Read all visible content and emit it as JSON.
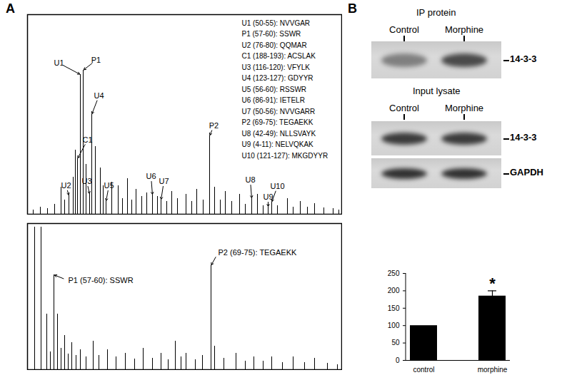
{
  "panel_labels": [
    "A",
    "B"
  ],
  "chart_data": [
    {
      "type": "spectrum",
      "tick_labels": false,
      "color": "#000000",
      "xlim": [
        0,
        440
      ],
      "ylim": [
        0,
        280
      ],
      "x": [
        8,
        18,
        28,
        38,
        47,
        52,
        58,
        64,
        67,
        70,
        74,
        78,
        82,
        87,
        90,
        95,
        102,
        106,
        110,
        118,
        127,
        133,
        140,
        146,
        152,
        160,
        167,
        175,
        182,
        187,
        195,
        202,
        210,
        222,
        230,
        237,
        246,
        255,
        262,
        270,
        277,
        286,
        297,
        305,
        314,
        322,
        330,
        337,
        342,
        350,
        364,
        372,
        382,
        392,
        402,
        415,
        428,
        436
      ],
      "values": [
        6,
        10,
        8,
        14,
        38,
        20,
        26,
        52,
        90,
        78,
        196,
        202,
        70,
        28,
        140,
        95,
        65,
        40,
        18,
        45,
        40,
        22,
        50,
        20,
        35,
        25,
        30,
        27,
        25,
        20,
        18,
        32,
        22,
        28,
        18,
        35,
        20,
        110,
        38,
        20,
        32,
        18,
        28,
        14,
        22,
        28,
        12,
        10,
        17,
        12,
        22,
        10,
        18,
        10,
        15,
        9,
        8,
        6
      ],
      "annotations": [
        {
          "label": "U1",
          "x": 74,
          "y": 196
        },
        {
          "label": "P1",
          "x": 78,
          "y": 202
        },
        {
          "label": "C1",
          "x": 70,
          "y": 78
        },
        {
          "label": "U4",
          "x": 90,
          "y": 140
        },
        {
          "label": "U2",
          "x": 58,
          "y": 26
        },
        {
          "label": "U3",
          "x": 87,
          "y": 28
        },
        {
          "label": "U5",
          "x": 110,
          "y": 18
        },
        {
          "label": "U6",
          "x": 175,
          "y": 27
        },
        {
          "label": "U7",
          "x": 187,
          "y": 20
        },
        {
          "label": "P2",
          "x": 255,
          "y": 110
        },
        {
          "label": "U8",
          "x": 314,
          "y": 22
        },
        {
          "label": "U9",
          "x": 337,
          "y": 10
        },
        {
          "label": "U10",
          "x": 342,
          "y": 17
        }
      ],
      "peptides": [
        "U1 (50-55): NVVGAR",
        "P1 (57-60): SSWR",
        "U2 (76-80): QQMAR",
        "C1 (188-193): ACSLAK",
        "U3 (116-120): VFYLK",
        "U4 (123-127): GDYYR",
        "U5 (56-60): RSSWR",
        "U6 (86-91): IETELR",
        "U7 (50-56): NVVGARR",
        "P2 (69-75): TEGAEKK",
        "U8 (42-49): NLLSVAYK",
        "U9 (4-11): NELVQKAK",
        "U10 (121-127): MKGDYYR"
      ]
    },
    {
      "type": "spectrum",
      "tick_labels": false,
      "color": "#000000",
      "xlim": [
        0,
        440
      ],
      "ylim": [
        0,
        205
      ],
      "x": [
        10,
        19,
        27,
        32,
        37,
        42,
        47,
        52,
        57,
        62,
        68,
        74,
        82,
        92,
        100,
        112,
        124,
        137,
        150,
        162,
        175,
        187,
        197,
        207,
        215,
        222,
        235,
        245,
        257,
        262,
        275,
        292,
        305,
        317,
        330,
        342,
        357,
        372,
        388,
        402,
        420,
        434
      ],
      "values": [
        200,
        200,
        78,
        25,
        133,
        78,
        30,
        48,
        22,
        38,
        20,
        28,
        18,
        40,
        20,
        28,
        18,
        23,
        15,
        30,
        16,
        23,
        14,
        40,
        18,
        23,
        14,
        20,
        146,
        33,
        16,
        23,
        12,
        18,
        12,
        18,
        10,
        18,
        10,
        16,
        9,
        7
      ],
      "annotations": [
        {
          "label": "P1 (57-60): SSWR",
          "x": 37,
          "y": 133
        },
        {
          "label": "P2 (69-75): TEGAEKK",
          "x": 257,
          "y": 146
        }
      ]
    },
    {
      "type": "bar",
      "color": "#000000",
      "categories": [
        "control",
        "morphine"
      ],
      "values": [
        100,
        185
      ],
      "errors": [
        null,
        15
      ],
      "ylim": [
        0,
        250
      ],
      "yticks": [
        0,
        50,
        100,
        150,
        200,
        250
      ],
      "annotations": [
        {
          "label": "*",
          "category": "morphine"
        }
      ]
    }
  ],
  "blots": [
    {
      "title": "IP protein",
      "lanes": [
        "Control",
        "Morphine"
      ],
      "bands": [
        "14-3-3"
      ]
    },
    {
      "title": "Input lysate",
      "lanes": [
        "Control",
        "Morphine"
      ],
      "bands": [
        "14-3-3",
        "GAPDH"
      ]
    }
  ]
}
